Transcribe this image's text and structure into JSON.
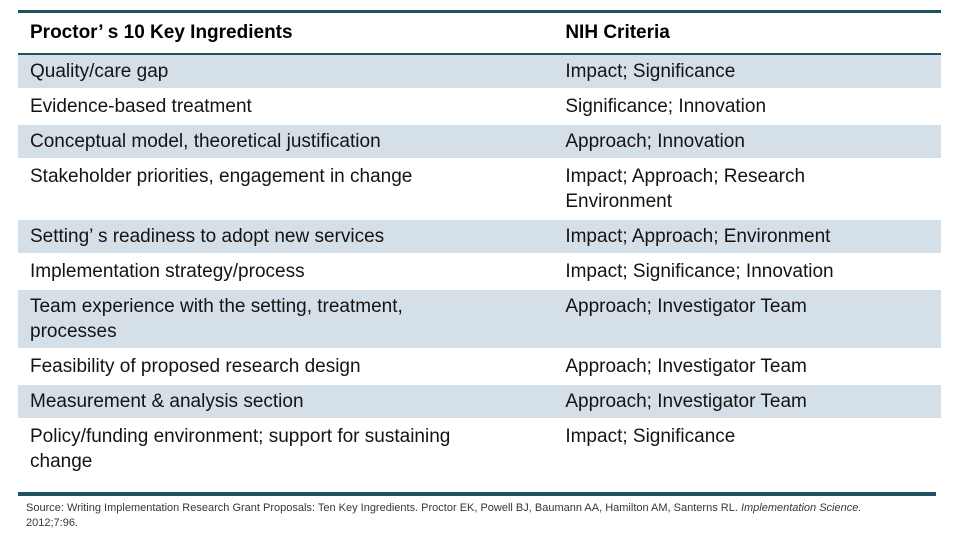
{
  "table": {
    "headers": {
      "col1": "Proctor’ s 10 Key Ingredients",
      "col2": "NIH Criteria"
    },
    "rows": [
      {
        "ingredient": "Quality/care gap",
        "criteria": "Impact; Significance"
      },
      {
        "ingredient": "Evidence-based treatment",
        "criteria": "Significance; Innovation"
      },
      {
        "ingredient": "Conceptual model, theoretical justification",
        "criteria": "Approach; Innovation"
      },
      {
        "ingredient": "Stakeholder priorities, engagement in change",
        "criteria": "Impact; Approach; Research Environment"
      },
      {
        "ingredient": "Setting’ s readiness to adopt new services",
        "criteria": "Impact; Approach; Environment"
      },
      {
        "ingredient": "Implementation strategy/process",
        "criteria": "Impact; Significance; Innovation"
      },
      {
        "ingredient": "Team experience with the setting, treatment, processes",
        "criteria": "Approach; Investigator Team"
      },
      {
        "ingredient": "Feasibility of proposed research design",
        "criteria": "Approach; Investigator Team"
      },
      {
        "ingredient": "Measurement & analysis section",
        "criteria": "Approach; Investigator Team"
      },
      {
        "ingredient": "Policy/funding environment; support for sustaining change",
        "criteria": "Impact; Significance"
      }
    ]
  },
  "footer": {
    "source_prefix": "Source: Writing Implementation Research Grant Proposals: Ten Key Ingredients. Proctor EK, Powell BJ, Baumann AA, Hamilton AM, Santerns RL. ",
    "journal_italic": "Implementation Science.",
    "volume_line": "2012;7:96."
  },
  "colors": {
    "accent_rule": "#1F5162",
    "row_highlight": "#D5DFE7",
    "footer_text": "#3F352F"
  }
}
